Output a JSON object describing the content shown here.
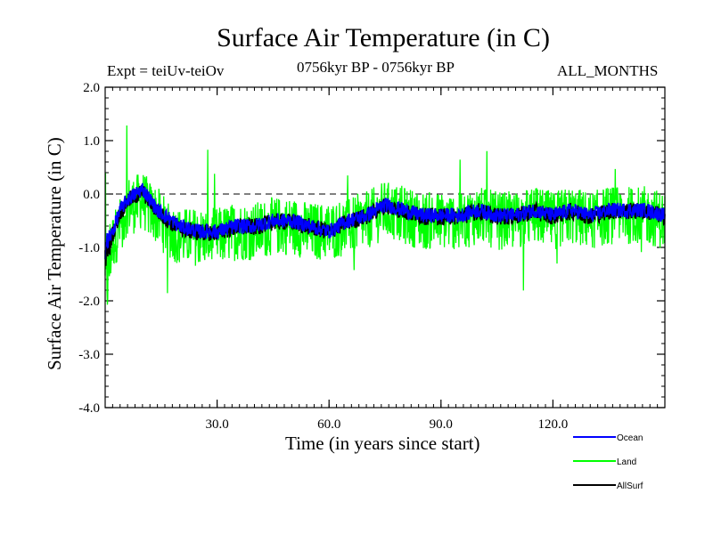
{
  "chart_data": {
    "type": "line",
    "title": "Surface Air Temperature (in C)",
    "subtitle_left": "Expt = teiUv-teiOv",
    "subtitle_center": "0756kyr BP - 0756kyr BP",
    "subtitle_right": "ALL_MONTHS",
    "xlabel": "Time (in years since start)",
    "ylabel": "Surface Air Temperature (in C)",
    "xlim": [
      0,
      150
    ],
    "ylim": [
      -4.0,
      2.0
    ],
    "xticks": [
      30,
      60,
      90,
      120
    ],
    "xtick_labels": [
      "30.0",
      "60.0",
      "90.0",
      "120.0"
    ],
    "yticks": [
      -4,
      -3,
      -2,
      -1,
      0,
      1,
      2
    ],
    "ytick_labels": [
      "-4.0",
      "-3.0",
      "-2.0",
      "-1.0",
      "0.0",
      "1.0",
      "2.0"
    ],
    "reference_line": 0.0,
    "legend_position": "bottom-right",
    "series": [
      {
        "name": "Land",
        "color": "#00ff00",
        "x": [
          0,
          2,
          4,
          6,
          8,
          10,
          12,
          14,
          16,
          18,
          20,
          25,
          30,
          35,
          40,
          45,
          50,
          55,
          60,
          65,
          70,
          75,
          80,
          85,
          90,
          95,
          100,
          105,
          110,
          115,
          120,
          125,
          130,
          135,
          140,
          145,
          150
        ],
        "values": [
          -1.8,
          -0.9,
          -0.6,
          -0.2,
          -0.2,
          -0.1,
          -0.3,
          -0.4,
          -0.6,
          -0.7,
          -0.8,
          -0.8,
          -0.8,
          -0.7,
          -0.7,
          -0.6,
          -0.6,
          -0.7,
          -0.7,
          -0.6,
          -0.5,
          -0.3,
          -0.4,
          -0.5,
          -0.5,
          -0.5,
          -0.4,
          -0.5,
          -0.5,
          -0.4,
          -0.5,
          -0.4,
          -0.5,
          -0.4,
          -0.4,
          -0.4,
          -0.5
        ]
      },
      {
        "name": "Ocean",
        "color": "#0000ff",
        "x": [
          0,
          2,
          4,
          6,
          8,
          10,
          12,
          14,
          16,
          18,
          20,
          25,
          30,
          35,
          40,
          45,
          50,
          55,
          60,
          65,
          70,
          75,
          80,
          85,
          90,
          95,
          100,
          105,
          110,
          115,
          120,
          125,
          130,
          135,
          140,
          145,
          150
        ],
        "values": [
          -1.0,
          -0.7,
          -0.3,
          -0.1,
          0.0,
          0.1,
          -0.1,
          -0.3,
          -0.4,
          -0.5,
          -0.6,
          -0.7,
          -0.7,
          -0.6,
          -0.6,
          -0.5,
          -0.5,
          -0.6,
          -0.7,
          -0.5,
          -0.4,
          -0.2,
          -0.3,
          -0.4,
          -0.4,
          -0.4,
          -0.3,
          -0.4,
          -0.4,
          -0.3,
          -0.4,
          -0.3,
          -0.4,
          -0.3,
          -0.3,
          -0.3,
          -0.4
        ]
      },
      {
        "name": "AllSurf",
        "color": "#000000",
        "x": [
          0,
          2,
          4,
          6,
          8,
          10,
          12,
          14,
          16,
          18,
          20,
          25,
          30,
          35,
          40,
          45,
          50,
          55,
          60,
          65,
          70,
          75,
          80,
          85,
          90,
          95,
          100,
          105,
          110,
          115,
          120,
          125,
          130,
          135,
          140,
          145,
          150
        ],
        "values": [
          -1.2,
          -0.75,
          -0.35,
          -0.12,
          -0.05,
          0.05,
          -0.15,
          -0.32,
          -0.45,
          -0.55,
          -0.65,
          -0.72,
          -0.72,
          -0.62,
          -0.62,
          -0.52,
          -0.52,
          -0.62,
          -0.7,
          -0.52,
          -0.42,
          -0.22,
          -0.32,
          -0.42,
          -0.42,
          -0.42,
          -0.32,
          -0.42,
          -0.42,
          -0.32,
          -0.42,
          -0.32,
          -0.42,
          -0.32,
          -0.32,
          -0.32,
          -0.42
        ]
      }
    ]
  }
}
